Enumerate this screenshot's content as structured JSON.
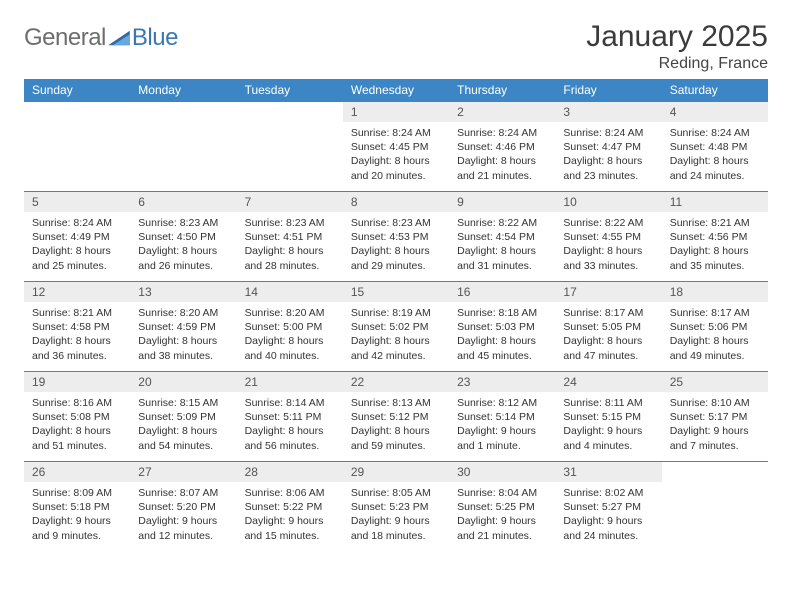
{
  "logo": {
    "text_general": "General",
    "text_blue": "Blue"
  },
  "header": {
    "title": "January 2025",
    "subtitle": "Reding, France"
  },
  "colors": {
    "header_bg": "#3d86c6",
    "header_fg": "#ffffff",
    "daynum_bg": "#ededed",
    "border": "#3d86c6",
    "logo_gray": "#6d6d6d",
    "logo_blue": "#3a78b5"
  },
  "weekdays": [
    "Sunday",
    "Monday",
    "Tuesday",
    "Wednesday",
    "Thursday",
    "Friday",
    "Saturday"
  ],
  "weeks": [
    [
      null,
      null,
      null,
      {
        "n": "1",
        "sr": "Sunrise: 8:24 AM",
        "ss": "Sunset: 4:45 PM",
        "d1": "Daylight: 8 hours",
        "d2": "and 20 minutes."
      },
      {
        "n": "2",
        "sr": "Sunrise: 8:24 AM",
        "ss": "Sunset: 4:46 PM",
        "d1": "Daylight: 8 hours",
        "d2": "and 21 minutes."
      },
      {
        "n": "3",
        "sr": "Sunrise: 8:24 AM",
        "ss": "Sunset: 4:47 PM",
        "d1": "Daylight: 8 hours",
        "d2": "and 23 minutes."
      },
      {
        "n": "4",
        "sr": "Sunrise: 8:24 AM",
        "ss": "Sunset: 4:48 PM",
        "d1": "Daylight: 8 hours",
        "d2": "and 24 minutes."
      }
    ],
    [
      {
        "n": "5",
        "sr": "Sunrise: 8:24 AM",
        "ss": "Sunset: 4:49 PM",
        "d1": "Daylight: 8 hours",
        "d2": "and 25 minutes."
      },
      {
        "n": "6",
        "sr": "Sunrise: 8:23 AM",
        "ss": "Sunset: 4:50 PM",
        "d1": "Daylight: 8 hours",
        "d2": "and 26 minutes."
      },
      {
        "n": "7",
        "sr": "Sunrise: 8:23 AM",
        "ss": "Sunset: 4:51 PM",
        "d1": "Daylight: 8 hours",
        "d2": "and 28 minutes."
      },
      {
        "n": "8",
        "sr": "Sunrise: 8:23 AM",
        "ss": "Sunset: 4:53 PM",
        "d1": "Daylight: 8 hours",
        "d2": "and 29 minutes."
      },
      {
        "n": "9",
        "sr": "Sunrise: 8:22 AM",
        "ss": "Sunset: 4:54 PM",
        "d1": "Daylight: 8 hours",
        "d2": "and 31 minutes."
      },
      {
        "n": "10",
        "sr": "Sunrise: 8:22 AM",
        "ss": "Sunset: 4:55 PM",
        "d1": "Daylight: 8 hours",
        "d2": "and 33 minutes."
      },
      {
        "n": "11",
        "sr": "Sunrise: 8:21 AM",
        "ss": "Sunset: 4:56 PM",
        "d1": "Daylight: 8 hours",
        "d2": "and 35 minutes."
      }
    ],
    [
      {
        "n": "12",
        "sr": "Sunrise: 8:21 AM",
        "ss": "Sunset: 4:58 PM",
        "d1": "Daylight: 8 hours",
        "d2": "and 36 minutes."
      },
      {
        "n": "13",
        "sr": "Sunrise: 8:20 AM",
        "ss": "Sunset: 4:59 PM",
        "d1": "Daylight: 8 hours",
        "d2": "and 38 minutes."
      },
      {
        "n": "14",
        "sr": "Sunrise: 8:20 AM",
        "ss": "Sunset: 5:00 PM",
        "d1": "Daylight: 8 hours",
        "d2": "and 40 minutes."
      },
      {
        "n": "15",
        "sr": "Sunrise: 8:19 AM",
        "ss": "Sunset: 5:02 PM",
        "d1": "Daylight: 8 hours",
        "d2": "and 42 minutes."
      },
      {
        "n": "16",
        "sr": "Sunrise: 8:18 AM",
        "ss": "Sunset: 5:03 PM",
        "d1": "Daylight: 8 hours",
        "d2": "and 45 minutes."
      },
      {
        "n": "17",
        "sr": "Sunrise: 8:17 AM",
        "ss": "Sunset: 5:05 PM",
        "d1": "Daylight: 8 hours",
        "d2": "and 47 minutes."
      },
      {
        "n": "18",
        "sr": "Sunrise: 8:17 AM",
        "ss": "Sunset: 5:06 PM",
        "d1": "Daylight: 8 hours",
        "d2": "and 49 minutes."
      }
    ],
    [
      {
        "n": "19",
        "sr": "Sunrise: 8:16 AM",
        "ss": "Sunset: 5:08 PM",
        "d1": "Daylight: 8 hours",
        "d2": "and 51 minutes."
      },
      {
        "n": "20",
        "sr": "Sunrise: 8:15 AM",
        "ss": "Sunset: 5:09 PM",
        "d1": "Daylight: 8 hours",
        "d2": "and 54 minutes."
      },
      {
        "n": "21",
        "sr": "Sunrise: 8:14 AM",
        "ss": "Sunset: 5:11 PM",
        "d1": "Daylight: 8 hours",
        "d2": "and 56 minutes."
      },
      {
        "n": "22",
        "sr": "Sunrise: 8:13 AM",
        "ss": "Sunset: 5:12 PM",
        "d1": "Daylight: 8 hours",
        "d2": "and 59 minutes."
      },
      {
        "n": "23",
        "sr": "Sunrise: 8:12 AM",
        "ss": "Sunset: 5:14 PM",
        "d1": "Daylight: 9 hours",
        "d2": "and 1 minute."
      },
      {
        "n": "24",
        "sr": "Sunrise: 8:11 AM",
        "ss": "Sunset: 5:15 PM",
        "d1": "Daylight: 9 hours",
        "d2": "and 4 minutes."
      },
      {
        "n": "25",
        "sr": "Sunrise: 8:10 AM",
        "ss": "Sunset: 5:17 PM",
        "d1": "Daylight: 9 hours",
        "d2": "and 7 minutes."
      }
    ],
    [
      {
        "n": "26",
        "sr": "Sunrise: 8:09 AM",
        "ss": "Sunset: 5:18 PM",
        "d1": "Daylight: 9 hours",
        "d2": "and 9 minutes."
      },
      {
        "n": "27",
        "sr": "Sunrise: 8:07 AM",
        "ss": "Sunset: 5:20 PM",
        "d1": "Daylight: 9 hours",
        "d2": "and 12 minutes."
      },
      {
        "n": "28",
        "sr": "Sunrise: 8:06 AM",
        "ss": "Sunset: 5:22 PM",
        "d1": "Daylight: 9 hours",
        "d2": "and 15 minutes."
      },
      {
        "n": "29",
        "sr": "Sunrise: 8:05 AM",
        "ss": "Sunset: 5:23 PM",
        "d1": "Daylight: 9 hours",
        "d2": "and 18 minutes."
      },
      {
        "n": "30",
        "sr": "Sunrise: 8:04 AM",
        "ss": "Sunset: 5:25 PM",
        "d1": "Daylight: 9 hours",
        "d2": "and 21 minutes."
      },
      {
        "n": "31",
        "sr": "Sunrise: 8:02 AM",
        "ss": "Sunset: 5:27 PM",
        "d1": "Daylight: 9 hours",
        "d2": "and 24 minutes."
      },
      null
    ]
  ]
}
